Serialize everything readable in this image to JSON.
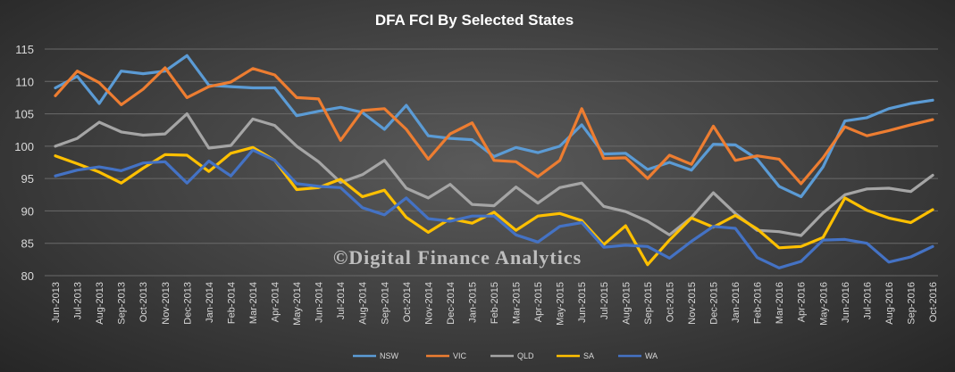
{
  "watermark": "©Digital Finance Analytics",
  "colors": {
    "NSW": "#5b9bd5",
    "VIC": "#ed7d31",
    "QLD": "#a5a5a5",
    "SA": "#ffc000",
    "WA": "#4472c4"
  },
  "chart_data": {
    "type": "line",
    "title": "DFA FCI By Selected States",
    "xlabel": "",
    "ylabel": "",
    "ylim": [
      80,
      115
    ],
    "yticks": [
      80,
      85,
      90,
      95,
      100,
      105,
      110,
      115
    ],
    "grid": true,
    "legend": "bottom",
    "categories": [
      "Jun-2013",
      "Jul-2013",
      "Aug-2013",
      "Sep-2013",
      "Oct-2013",
      "Nov-2013",
      "Dec-2013",
      "Jan-2014",
      "Feb-2014",
      "Mar-2014",
      "Apr-2014",
      "May-2014",
      "Jun-2014",
      "Jul-2014",
      "Aug-2014",
      "Sep-2014",
      "Oct-2014",
      "Nov-2014",
      "Dec-2014",
      "Jan-2015",
      "Feb-2015",
      "Mar-2015",
      "Apr-2015",
      "May-2015",
      "Jun-2015",
      "Jul-2015",
      "Aug-2015",
      "Sep-2015",
      "Oct-2015",
      "Nov-2015",
      "Dec-2015",
      "Jan-2016",
      "Feb-2016",
      "Mar-2016",
      "Apr-2016",
      "May-2016",
      "Jun-2016",
      "Jul-2016",
      "Aug-2016",
      "Sep-2016",
      "Oct-2016"
    ],
    "series": [
      {
        "name": "NSW",
        "values": [
          109.0,
          110.8,
          106.6,
          111.6,
          111.2,
          111.6,
          114.0,
          109.4,
          109.2,
          109.0,
          109.0,
          104.7,
          105.4,
          106.0,
          105.2,
          102.6,
          106.3,
          101.6,
          101.2,
          101.0,
          98.4,
          99.8,
          99.0,
          100.0,
          103.3,
          98.8,
          98.9,
          96.4,
          97.5,
          96.3,
          100.3,
          100.2,
          98.0,
          93.8,
          92.2,
          96.8,
          103.9,
          104.4,
          105.8,
          106.6,
          107.1
        ]
      },
      {
        "name": "VIC",
        "values": [
          107.8,
          111.6,
          109.8,
          106.4,
          108.8,
          112.1,
          107.5,
          109.2,
          109.9,
          112.0,
          111.0,
          107.5,
          107.3,
          100.9,
          105.5,
          105.8,
          102.6,
          98.0,
          101.9,
          103.6,
          97.8,
          97.6,
          95.3,
          97.8,
          105.8,
          98.1,
          98.2,
          95.0,
          98.6,
          97.2,
          103.1,
          97.8,
          98.5,
          98.0,
          94.2,
          98.2,
          103.0,
          101.6,
          102.4,
          103.3,
          104.1
        ]
      },
      {
        "name": "QLD",
        "values": [
          100.0,
          101.2,
          103.7,
          102.2,
          101.7,
          101.9,
          105.0,
          99.7,
          100.1,
          104.2,
          103.2,
          100.0,
          97.6,
          94.4,
          95.6,
          97.8,
          93.5,
          92.0,
          94.1,
          91.0,
          90.8,
          93.7,
          91.2,
          93.6,
          94.3,
          90.7,
          89.9,
          88.4,
          86.3,
          89.0,
          92.8,
          89.6,
          87.0,
          86.8,
          86.2,
          89.7,
          92.5,
          93.4,
          93.5,
          93.0,
          95.5
        ]
      },
      {
        "name": "SA",
        "values": [
          98.5,
          97.3,
          96.0,
          94.3,
          96.6,
          98.7,
          98.6,
          96.1,
          98.9,
          99.8,
          97.8,
          93.3,
          93.6,
          94.9,
          92.2,
          93.2,
          89.0,
          86.7,
          88.8,
          88.1,
          89.8,
          87.0,
          89.2,
          89.6,
          88.5,
          84.8,
          87.7,
          81.7,
          85.5,
          88.9,
          87.5,
          89.3,
          87.2,
          84.3,
          84.5,
          85.9,
          92.0,
          90.1,
          88.9,
          88.2,
          90.2
        ]
      },
      {
        "name": "WA",
        "values": [
          95.4,
          96.3,
          96.8,
          96.2,
          97.4,
          97.6,
          94.3,
          97.7,
          95.4,
          99.4,
          97.8,
          94.2,
          93.8,
          93.6,
          90.5,
          89.4,
          92.0,
          88.8,
          88.4,
          89.2,
          89.2,
          86.3,
          85.2,
          87.6,
          88.2,
          84.4,
          84.7,
          84.5,
          82.7,
          85.3,
          87.6,
          87.3,
          82.8,
          81.2,
          82.2,
          85.5,
          85.6,
          85.0,
          82.1,
          82.9,
          84.5
        ]
      }
    ]
  }
}
